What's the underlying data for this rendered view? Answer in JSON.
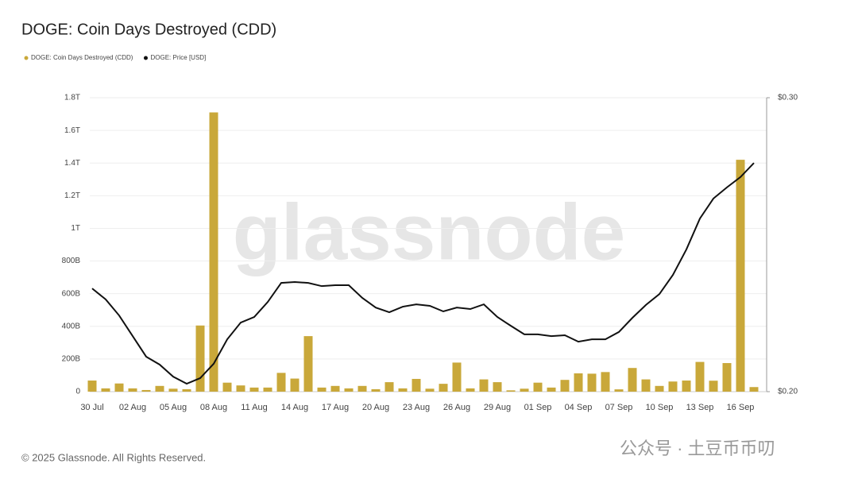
{
  "chart_data": {
    "type": "bar",
    "title": "DOGE: Coin Days Destroyed (CDD)",
    "watermark": "glassnode",
    "footer": "© 2025 Glassnode. All Rights Reserved.",
    "overlay": "公众号 · 土豆币币叨",
    "categories": [
      "30 Jul",
      null,
      null,
      "02 Aug",
      null,
      null,
      "05 Aug",
      null,
      null,
      "08 Aug",
      null,
      null,
      "11 Aug",
      null,
      null,
      "14 Aug",
      null,
      null,
      "17 Aug",
      null,
      null,
      "20 Aug",
      null,
      null,
      "23 Aug",
      null,
      null,
      "26 Aug",
      null,
      null,
      "29 Aug",
      null,
      null,
      "01 Sep",
      null,
      null,
      "04 Sep",
      null,
      null,
      "07 Sep",
      null,
      null,
      "10 Sep",
      null,
      null,
      "13 Sep",
      null,
      null,
      "16 Sep",
      null
    ],
    "series": [
      {
        "name": "DOGE: Coin Days Destroyed (CDD)",
        "type": "bar",
        "color": "#c9a83a",
        "values": [
          68000000000,
          20000000000,
          50000000000,
          20000000000,
          10000000000,
          35000000000,
          18000000000,
          15000000000,
          405000000000,
          1710000000000,
          55000000000,
          38000000000,
          25000000000,
          25000000000,
          115000000000,
          80000000000,
          340000000000,
          25000000000,
          35000000000,
          20000000000,
          35000000000,
          15000000000,
          58000000000,
          20000000000,
          78000000000,
          18000000000,
          48000000000,
          178000000000,
          20000000000,
          75000000000,
          58000000000,
          8000000000,
          18000000000,
          55000000000,
          25000000000,
          72000000000,
          112000000000,
          110000000000,
          120000000000,
          14000000000,
          145000000000,
          75000000000,
          35000000000,
          62000000000,
          68000000000,
          182000000000,
          67000000000,
          175000000000,
          1420000000000,
          28000000000
        ]
      },
      {
        "name": "DOGE: Price [USD]",
        "type": "line",
        "axis": "y2",
        "color": "#111111",
        "values": [
          0.2351,
          0.2314,
          0.2259,
          0.2189,
          0.2119,
          0.2092,
          0.2051,
          0.2027,
          0.2046,
          0.2095,
          0.2178,
          0.2235,
          0.2254,
          0.2305,
          0.237,
          0.2373,
          0.237,
          0.2359,
          0.2362,
          0.2362,
          0.2319,
          0.2286,
          0.227,
          0.2289,
          0.2297,
          0.2292,
          0.2273,
          0.2286,
          0.2281,
          0.2297,
          0.2254,
          0.2224,
          0.2195,
          0.2195,
          0.2189,
          0.2192,
          0.217,
          0.2178,
          0.2178,
          0.2203,
          0.2251,
          0.2295,
          0.2332,
          0.2397,
          0.2484,
          0.2589,
          0.2657,
          0.2695,
          0.273,
          0.2778
        ]
      }
    ],
    "ylim": [
      0,
      1800000000000
    ],
    "yticks": [
      0,
      {
        "value": 200000000000,
        "label": "200B"
      },
      {
        "value": 400000000000,
        "label": "400B"
      },
      {
        "value": 600000000000,
        "label": "600B"
      },
      {
        "value": 800000000000,
        "label": "800B"
      },
      {
        "value": 1000000000000,
        "label": "1T"
      },
      {
        "value": 1200000000000,
        "label": "1.2T"
      },
      {
        "value": 1400000000000,
        "label": "1.4T"
      },
      {
        "value": 1600000000000,
        "label": "1.6T"
      },
      {
        "value": 1800000000000,
        "label": "1.8T"
      }
    ],
    "y2lim": [
      0.2,
      0.3
    ],
    "y2ticks": [
      {
        "value": 0.2,
        "label": "$0.20"
      },
      {
        "value": 0.3,
        "label": "$0.30"
      }
    ],
    "grid": true
  }
}
